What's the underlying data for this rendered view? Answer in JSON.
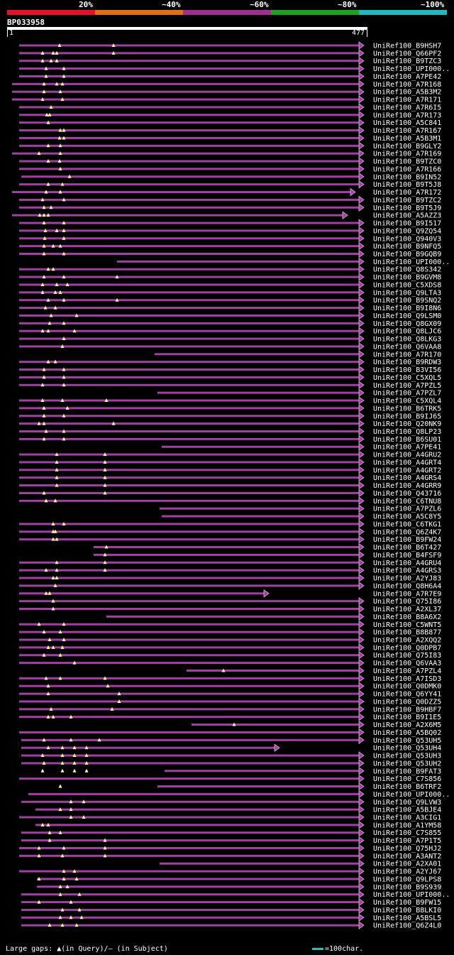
{
  "legend": {
    "bins": [
      {
        "label": "20%",
        "color": "#e8102a"
      },
      {
        "label": "~40%",
        "color": "#e07010"
      },
      {
        "label": "~60%",
        "color": "#a03090"
      },
      {
        "label": "~80%",
        "color": "#20a020"
      },
      {
        "label": "~100%",
        "color": "#20b8c0"
      }
    ]
  },
  "query": {
    "id": "BP033958",
    "start": "1",
    "end": "477",
    "length": 477
  },
  "bar_color": "#a040a0",
  "gap_marker_color": "#ffffa0",
  "hits": [
    "UniRef100_B9HSH7",
    "UniRef100_Q66PF2",
    "UniRef100_B9TZC3",
    "UniRef100_UPI000..",
    "UniRef100_A7PE42",
    "UniRef100_A7R168",
    "UniRef100_A5B3M2",
    "UniRef100_A7R171",
    "UniRef100_A7R6I5",
    "UniRef100_A7R173",
    "UniRef100_A5C841",
    "UniRef100_A7R167",
    "UniRef100_A5B3M1",
    "UniRef100_B9GLY2",
    "UniRef100_A7R169",
    "UniRef100_B9TZC0",
    "UniRef100_A7R166",
    "UniRef100_B9IN52",
    "UniRef100_B9T5J8",
    "UniRef100_A7R172",
    "UniRef100_B9TZC2",
    "UniRef100_B9T5J9",
    "UniRef100_A5AZZ3",
    "UniRef100_B9I517",
    "UniRef100_Q9ZQ54",
    "UniRef100_Q940V3",
    "UniRef100_B9NFQ5",
    "UniRef100_B9GQB9",
    "UniRef100_UPI000..",
    "UniRef100_Q8S342",
    "UniRef100_B9GVM8",
    "UniRef100_C5XDS8",
    "UniRef100_Q9LTA3",
    "UniRef100_B9SNQ2",
    "UniRef100_B9I8N6",
    "UniRef100_Q9LSM0",
    "UniRef100_Q8GX09",
    "UniRef100_Q8LJC6",
    "UniRef100_Q8LKG3",
    "UniRef100_Q6VAA8",
    "UniRef100_A7R170",
    "UniRef100_B9RDW3",
    "UniRef100_B3VI56",
    "UniRef100_C5XQL5",
    "UniRef100_A7PZL5",
    "UniRef100_A7PZL7",
    "UniRef100_C5XQL4",
    "UniRef100_B6TRK5",
    "UniRef100_B9IJ65",
    "UniRef100_Q20NK9",
    "UniRef100_Q8LP23",
    "UniRef100_B6SU01",
    "UniRef100_A7PE41",
    "UniRef100_A4GRU2",
    "UniRef100_A4GRT4",
    "UniRef100_A4GRT2",
    "UniRef100_A4GRS4",
    "UniRef100_A4GRR9",
    "UniRef100_Q43716",
    "UniRef100_C6TNU8",
    "UniRef100_A7PZL6",
    "UniRef100_A5C8Y5",
    "UniRef100_C6TKG1",
    "UniRef100_Q6Z4K7",
    "UniRef100_B9FW24",
    "UniRef100_B6T427",
    "UniRef100_B4FSF9",
    "UniRef100_A4GRU4",
    "UniRef100_A4GRS3",
    "UniRef100_A2YJ83",
    "UniRef100_Q8H6A4",
    "UniRef100_A7R7E9",
    "UniRef100_Q75I86",
    "UniRef100_A2XL37",
    "UniRef100_B8A6X2",
    "UniRef100_C5WNT5",
    "UniRef100_B8B877",
    "UniRef100_A2XQQ2",
    "UniRef100_Q0DPB7",
    "UniRef100_Q75I83",
    "UniRef100_Q6VAA3",
    "UniRef100_A7PZL4",
    "UniRef100_A7ISD3",
    "UniRef100_Q0DMK0",
    "UniRef100_Q6YY41",
    "UniRef100_Q0DZZ5",
    "UniRef100_B9HBF7",
    "UniRef100_B9I1E5",
    "UniRef100_A2X6M5",
    "UniRef100_A5BQ02",
    "UniRef100_Q53UH5",
    "UniRef100_Q53UH4",
    "UniRef100_Q53UH3",
    "UniRef100_Q53UH2",
    "UniRef100_B9FAT3",
    "UniRef100_C7S856",
    "UniRef100_B6TRF2",
    "UniRef100_UPI000..",
    "UniRef100_Q9LVW3",
    "UniRef100_A5BJE4",
    "UniRef100_A3CIG1",
    "UniRef100_A1YM58",
    "UniRef100_C7S855",
    "UniRef100_A7P1T5",
    "UniRef100_Q75HJ2",
    "UniRef100_A3ANT2",
    "UniRef100_A2XA01",
    "UniRef100_A2YJ67",
    "UniRef100_Q9LPS8",
    "UniRef100_B9S939",
    "UniRef100_UPI000..",
    "UniRef100_B9FW15",
    "UniRef100_B8LKI0",
    "UniRef100_A5BSL5",
    "UniRef100_Q6Z4L0"
  ],
  "footer": {
    "gaps_label": "Large gaps: ▲(in Query)/– (in Subject)",
    "scale_label": "=100char."
  }
}
